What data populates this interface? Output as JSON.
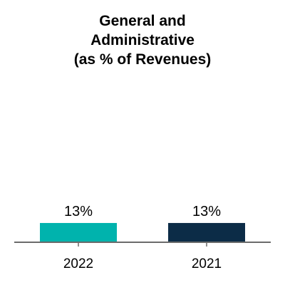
{
  "chart_data": {
    "type": "bar",
    "title_lines": [
      "General and",
      "Administrative",
      "(as % of Revenues)"
    ],
    "categories": [
      "2022",
      "2021"
    ],
    "values": [
      13,
      13
    ],
    "data_labels": [
      "13%",
      "13%"
    ],
    "colors": [
      "#00b3ad",
      "#0c2c47"
    ],
    "axis_color": "#6b6b6b",
    "xlabel": "",
    "ylabel": "",
    "ylim": [
      0,
      100
    ],
    "grid": false,
    "legend": "none"
  }
}
